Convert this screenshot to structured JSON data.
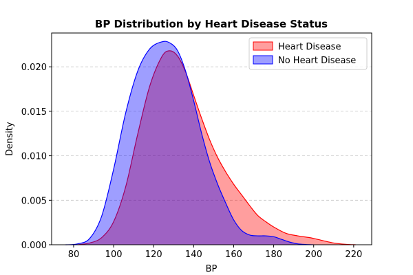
{
  "chart_data": {
    "type": "area",
    "title": "BP Distribution by Heart Disease Status",
    "xlabel": "BP",
    "ylabel": "Density",
    "xlim": [
      69,
      229
    ],
    "ylim": [
      0,
      0.0238
    ],
    "xticks": [
      80,
      100,
      120,
      140,
      160,
      180,
      200,
      220
    ],
    "yticks": [
      0.0,
      0.005,
      0.01,
      0.015,
      0.02
    ],
    "xtick_labels": [
      "80",
      "100",
      "120",
      "140",
      "160",
      "180",
      "200",
      "220"
    ],
    "ytick_labels": [
      "0.000",
      "0.005",
      "0.010",
      "0.015",
      "0.020"
    ],
    "grid": "y-dashed",
    "legend_position": "top-right",
    "series": [
      {
        "name": "Heart Disease",
        "color": "#ff0000",
        "fill_opacity": 0.38,
        "x": [
          82,
          88,
          94,
          100,
          106,
          112,
          118,
          124,
          128,
          132,
          136,
          140,
          144,
          148,
          152,
          156,
          160,
          164,
          168,
          172,
          176,
          180,
          186,
          192,
          198,
          204,
          210,
          216,
          221
        ],
        "y": [
          0.0,
          0.0002,
          0.0008,
          0.0026,
          0.0065,
          0.0124,
          0.0178,
          0.0211,
          0.0218,
          0.0212,
          0.0194,
          0.0168,
          0.0142,
          0.0118,
          0.0098,
          0.0082,
          0.0068,
          0.0056,
          0.0044,
          0.0033,
          0.0026,
          0.002,
          0.0013,
          0.001,
          0.0008,
          0.0005,
          0.0002,
          5e-05,
          0.0
        ]
      },
      {
        "name": "No Heart Disease",
        "color": "#0000ff",
        "fill_opacity": 0.38,
        "x": [
          76,
          82,
          88,
          94,
          100,
          106,
          112,
          118,
          124,
          128,
          132,
          136,
          140,
          144,
          148,
          152,
          156,
          160,
          164,
          168,
          172,
          176,
          180,
          184,
          188,
          192,
          196,
          200
        ],
        "y": [
          0.0,
          0.0001,
          0.0007,
          0.0032,
          0.0085,
          0.0148,
          0.0195,
          0.022,
          0.0228,
          0.0227,
          0.0218,
          0.0195,
          0.0162,
          0.0125,
          0.0093,
          0.0068,
          0.0047,
          0.0028,
          0.0016,
          0.0011,
          0.001,
          0.001,
          0.0009,
          0.0006,
          0.0003,
          0.0001,
          3e-05,
          0.0
        ]
      }
    ]
  }
}
